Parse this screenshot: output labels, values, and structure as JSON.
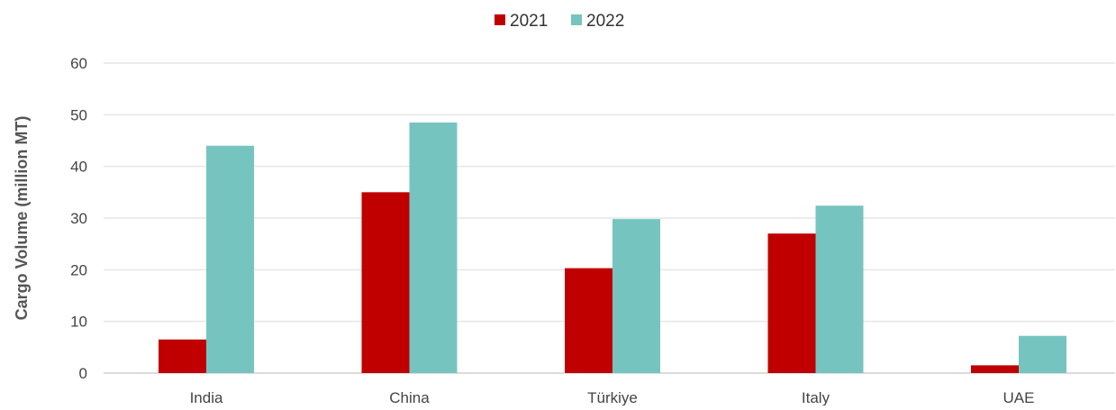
{
  "chart_data": {
    "type": "bar",
    "title": "",
    "xlabel": "",
    "ylabel": "Cargo Volume (million MT)",
    "categories": [
      "India",
      "China",
      "Türkiye",
      "Italy",
      "UAE"
    ],
    "series": [
      {
        "name": "2021",
        "color": "#c00000",
        "values": [
          6.5,
          35,
          20.3,
          27,
          1.5
        ]
      },
      {
        "name": "2022",
        "color": "#76c4c0",
        "values": [
          44,
          48.5,
          29.8,
          32.4,
          7.2
        ]
      }
    ],
    "ylim": [
      0,
      60
    ],
    "yticks": [
      0,
      10,
      20,
      30,
      40,
      50,
      60
    ],
    "grid": true,
    "legend_position": "top-center"
  }
}
